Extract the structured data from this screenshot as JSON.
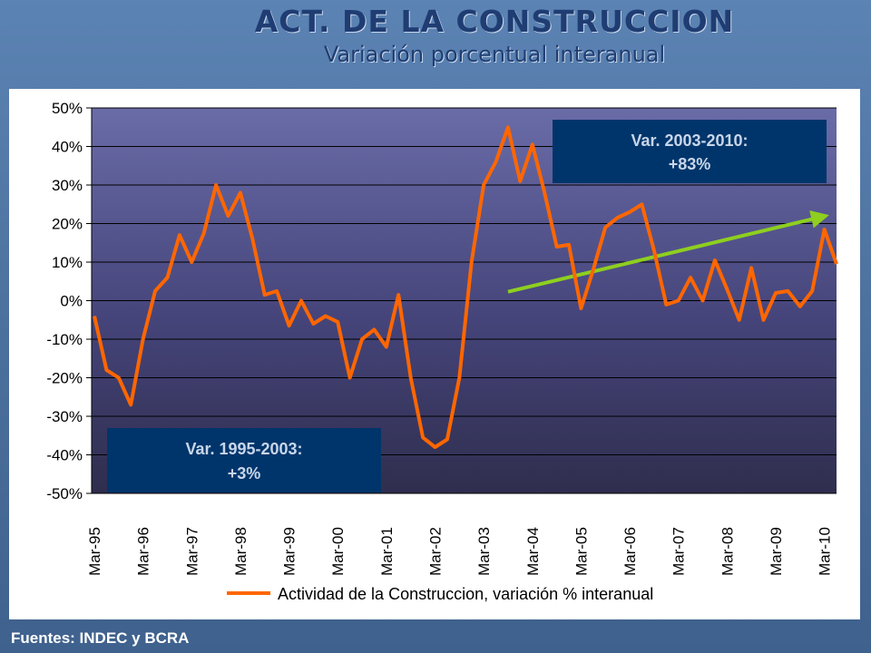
{
  "slide": {
    "title": "ACT. DE LA CONSTRUCCION",
    "subtitle": "Variación porcentual interanual",
    "source": "Fuentes: INDEC y BCRA",
    "colors": {
      "background": "#4a6f9b",
      "title": "#1f3d73",
      "line": "#ff6600",
      "trend": "#8ecf1f",
      "callout": "#00356b"
    }
  },
  "chart_data": {
    "type": "line",
    "title": "",
    "xlabel": "",
    "ylabel": "",
    "ylim": [
      -0.5,
      0.5
    ],
    "y_ticks": [
      "50%",
      "40%",
      "30%",
      "20%",
      "10%",
      "0%",
      "-10%",
      "-20%",
      "-30%",
      "-40%",
      "-50%"
    ],
    "y_tick_values": [
      0.5,
      0.4,
      0.3,
      0.2,
      0.1,
      0,
      -0.1,
      -0.2,
      -0.3,
      -0.4,
      -0.5
    ],
    "x_ticks": [
      "Mar-95",
      "Mar-96",
      "Mar-97",
      "Mar-98",
      "Mar-99",
      "Mar-00",
      "Mar-01",
      "Mar-02",
      "Mar-03",
      "Mar-04",
      "Mar-05",
      "Mar-06",
      "Mar-07",
      "Mar-08",
      "Mar-09",
      "Mar-10"
    ],
    "x_start": "Mar-95",
    "legend_position": "bottom",
    "grid": true,
    "series": [
      {
        "name": "Actividad de la Construccion, variación % interanual",
        "color": "#ff6600",
        "values": [
          -0.04,
          -0.18,
          -0.2,
          -0.27,
          -0.1,
          0.025,
          0.06,
          0.17,
          0.1,
          0.175,
          0.3,
          0.22,
          0.28,
          0.16,
          0.015,
          0.025,
          -0.065,
          0.0,
          -0.06,
          -0.04,
          -0.055,
          -0.2,
          -0.1,
          -0.075,
          -0.12,
          0.015,
          -0.2,
          -0.355,
          -0.38,
          -0.36,
          -0.2,
          0.1,
          0.3,
          0.36,
          0.45,
          0.31,
          0.405,
          0.28,
          0.14,
          0.145,
          -0.02,
          0.08,
          0.19,
          0.215,
          0.23,
          0.25,
          0.13,
          -0.01,
          0.0,
          0.06,
          0.0,
          0.105,
          0.03,
          -0.05,
          0.085,
          -0.05,
          0.02,
          0.025,
          -0.015,
          0.025,
          0.185,
          0.095
        ]
      }
    ],
    "trend_line": {
      "color": "#8ecf1f",
      "from_y": 0.023,
      "to_y": 0.22
    },
    "annotations": [
      {
        "text_line1": "Var. 2003-2010:",
        "text_line2": "+83%"
      },
      {
        "text_line1": "Var. 1995-2003:",
        "text_line2": "+3%"
      }
    ]
  }
}
